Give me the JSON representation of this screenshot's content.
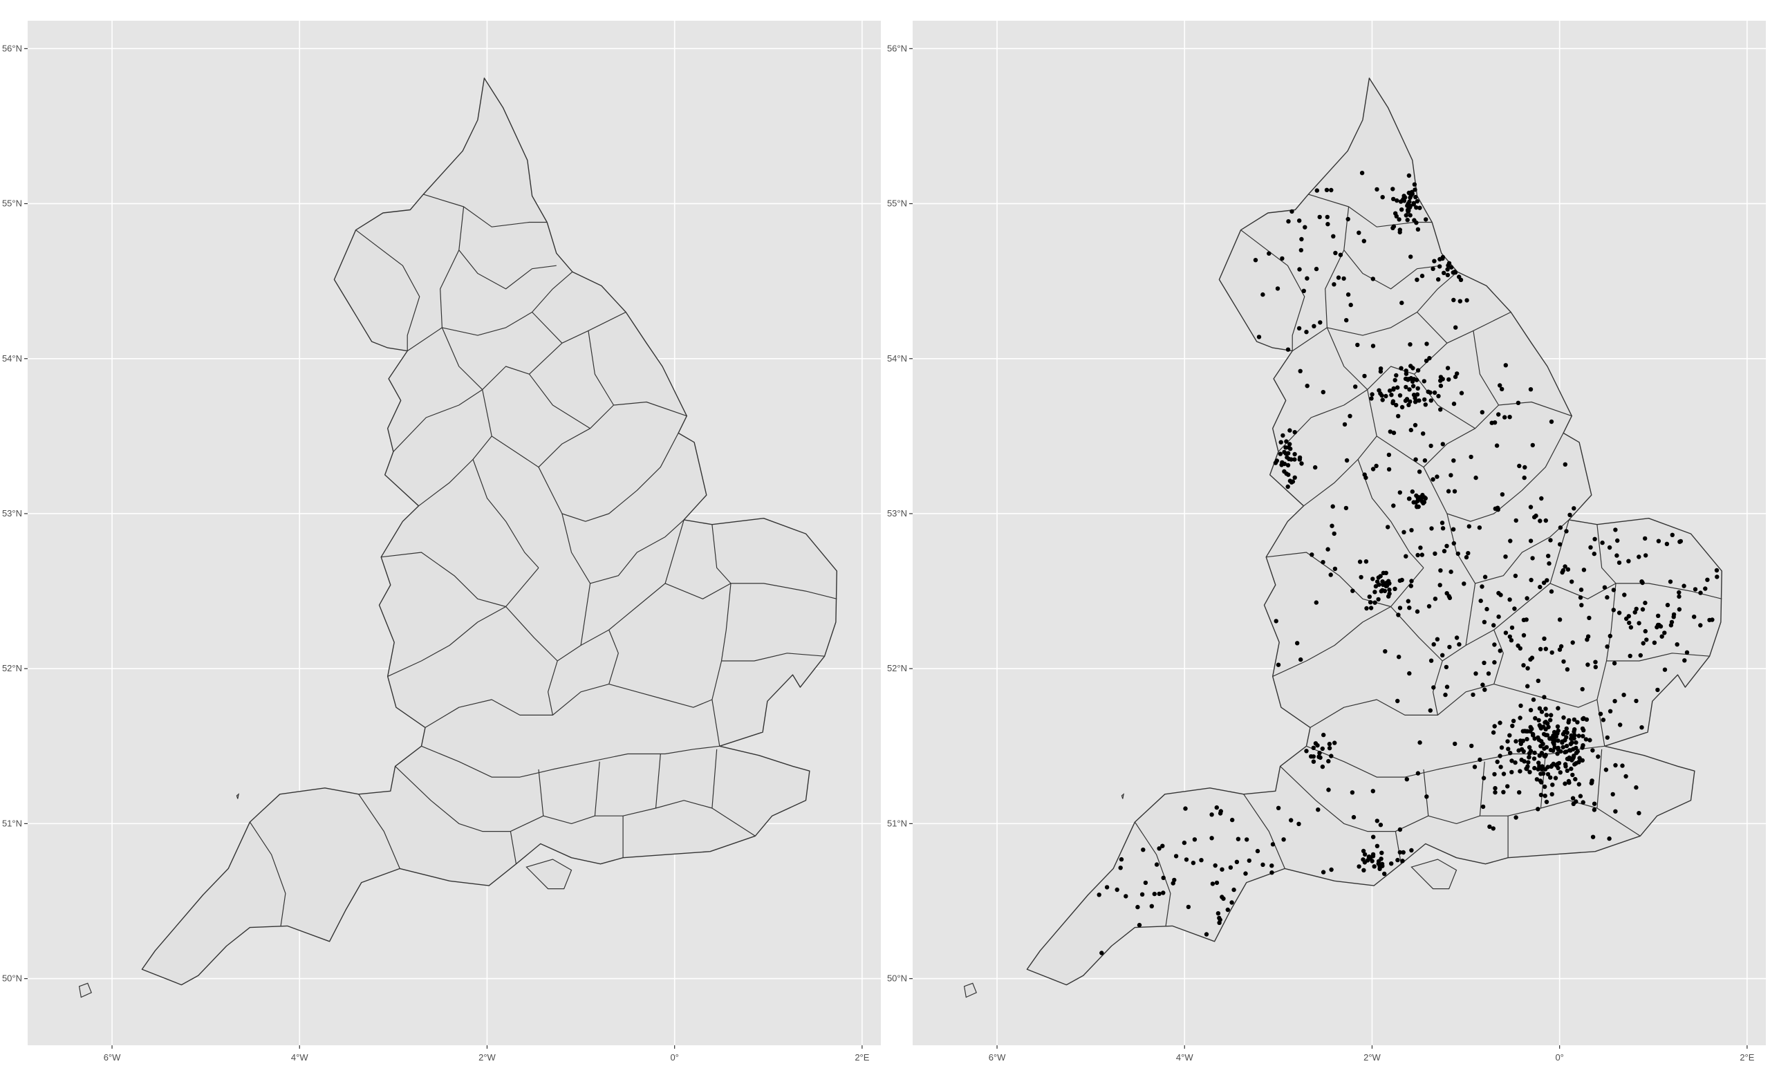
{
  "figure": {
    "panels": [
      {
        "id": "left",
        "description_visible": false,
        "show_points": false
      },
      {
        "id": "right",
        "description_visible": false,
        "show_points": true
      }
    ],
    "panel_bg": "#e5e5e5",
    "grid_color": "#ffffff",
    "land_fill": "#e1e1e1",
    "border_color": "#333333",
    "point_color": "#000000"
  },
  "chart_data": {
    "type": "map",
    "x_ticks": [
      "6°W",
      "4°W",
      "2°W",
      "0°",
      "2°E"
    ],
    "y_ticks": [
      "50°N",
      "51°N",
      "52°N",
      "53°N",
      "54°N",
      "55°N",
      "56°N"
    ],
    "xlim": [
      -6.9,
      2.2
    ],
    "ylim": [
      49.57,
      56.18
    ],
    "x_tick_values": [
      -6,
      -4,
      -2,
      0,
      2
    ],
    "y_tick_values": [
      50,
      51,
      52,
      53,
      54,
      55,
      56
    ],
    "outline": [
      [
        -2.03,
        55.81
      ],
      [
        -1.83,
        55.62
      ],
      [
        -1.57,
        55.28
      ],
      [
        -1.52,
        55.05
      ],
      [
        -1.36,
        54.88
      ],
      [
        -1.26,
        54.68
      ],
      [
        -1.09,
        54.56
      ],
      [
        -0.78,
        54.47
      ],
      [
        -0.52,
        54.3
      ],
      [
        -0.3,
        54.1
      ],
      [
        -0.13,
        53.95
      ],
      [
        0.13,
        53.63
      ],
      [
        0.04,
        53.52
      ],
      [
        0.21,
        53.46
      ],
      [
        0.34,
        53.12
      ],
      [
        0.1,
        52.96
      ],
      [
        0.4,
        52.93
      ],
      [
        0.95,
        52.97
      ],
      [
        1.4,
        52.87
      ],
      [
        1.73,
        52.63
      ],
      [
        1.72,
        52.3
      ],
      [
        1.6,
        52.08
      ],
      [
        1.34,
        51.88
      ],
      [
        1.26,
        51.96
      ],
      [
        0.99,
        51.79
      ],
      [
        0.94,
        51.59
      ],
      [
        0.48,
        51.5
      ],
      [
        0.9,
        51.44
      ],
      [
        1.26,
        51.37
      ],
      [
        1.44,
        51.34
      ],
      [
        1.4,
        51.15
      ],
      [
        1.04,
        51.05
      ],
      [
        0.86,
        50.92
      ],
      [
        0.38,
        50.82
      ],
      [
        -0.09,
        50.8
      ],
      [
        -0.55,
        50.78
      ],
      [
        -0.79,
        50.74
      ],
      [
        -1.1,
        50.78
      ],
      [
        -1.43,
        50.87
      ],
      [
        -1.69,
        50.74
      ],
      [
        -1.98,
        50.6
      ],
      [
        -2.4,
        50.63
      ],
      [
        -2.93,
        50.71
      ],
      [
        -3.34,
        50.62
      ],
      [
        -3.51,
        50.44
      ],
      [
        -3.68,
        50.24
      ],
      [
        -4.13,
        50.34
      ],
      [
        -4.53,
        50.33
      ],
      [
        -4.78,
        50.21
      ],
      [
        -5.08,
        50.02
      ],
      [
        -5.26,
        49.96
      ],
      [
        -5.68,
        50.06
      ],
      [
        -5.54,
        50.18
      ],
      [
        -5.03,
        50.54
      ],
      [
        -4.76,
        50.71
      ],
      [
        -4.53,
        51.01
      ],
      [
        -4.21,
        51.19
      ],
      [
        -3.73,
        51.23
      ],
      [
        -3.37,
        51.19
      ],
      [
        -3.03,
        51.21
      ],
      [
        -2.98,
        51.37
      ],
      [
        -2.7,
        51.5
      ],
      [
        -2.66,
        51.62
      ],
      [
        -2.97,
        51.75
      ],
      [
        -3.06,
        51.95
      ],
      [
        -2.99,
        52.17
      ],
      [
        -3.15,
        52.41
      ],
      [
        -3.03,
        52.54
      ],
      [
        -3.13,
        52.72
      ],
      [
        -2.9,
        52.95
      ],
      [
        -2.73,
        53.05
      ],
      [
        -3.09,
        53.25
      ],
      [
        -3.0,
        53.4
      ],
      [
        -3.06,
        53.55
      ],
      [
        -2.92,
        53.73
      ],
      [
        -3.05,
        53.87
      ],
      [
        -2.85,
        54.05
      ],
      [
        -3.06,
        54.07
      ],
      [
        -3.23,
        54.11
      ],
      [
        -3.39,
        54.27
      ],
      [
        -3.63,
        54.51
      ],
      [
        -3.4,
        54.83
      ],
      [
        -3.11,
        54.94
      ],
      [
        -2.82,
        54.96
      ],
      [
        -2.68,
        55.06
      ],
      [
        -2.26,
        55.34
      ],
      [
        -2.1,
        55.54
      ],
      [
        -2.03,
        55.81
      ]
    ],
    "boundaries": [
      [
        [
          -2.68,
          55.06
        ],
        [
          -2.25,
          54.98
        ],
        [
          -1.95,
          54.85
        ],
        [
          -1.55,
          54.88
        ],
        [
          -1.36,
          54.88
        ]
      ],
      [
        [
          -2.25,
          54.98
        ],
        [
          -2.3,
          54.7
        ],
        [
          -2.1,
          54.55
        ],
        [
          -1.8,
          54.45
        ],
        [
          -1.52,
          54.58
        ],
        [
          -1.26,
          54.6
        ]
      ],
      [
        [
          -3.4,
          54.83
        ],
        [
          -2.9,
          54.6
        ],
        [
          -2.72,
          54.4
        ],
        [
          -2.85,
          54.15
        ],
        [
          -2.85,
          54.05
        ]
      ],
      [
        [
          -2.3,
          54.7
        ],
        [
          -2.5,
          54.45
        ],
        [
          -2.48,
          54.2
        ],
        [
          -2.85,
          54.05
        ]
      ],
      [
        [
          -2.48,
          54.2
        ],
        [
          -2.1,
          54.15
        ],
        [
          -1.8,
          54.2
        ],
        [
          -1.52,
          54.3
        ],
        [
          -1.3,
          54.45
        ],
        [
          -1.09,
          54.56
        ]
      ],
      [
        [
          -1.52,
          54.3
        ],
        [
          -1.2,
          54.1
        ],
        [
          -0.92,
          54.18
        ],
        [
          -0.52,
          54.3
        ]
      ],
      [
        [
          -2.48,
          54.2
        ],
        [
          -2.3,
          53.95
        ],
        [
          -2.05,
          53.8
        ],
        [
          -1.8,
          53.95
        ],
        [
          -1.55,
          53.9
        ],
        [
          -1.2,
          54.1
        ]
      ],
      [
        [
          -3.0,
          53.4
        ],
        [
          -2.65,
          53.62
        ],
        [
          -2.3,
          53.7
        ],
        [
          -2.05,
          53.8
        ]
      ],
      [
        [
          -2.05,
          53.8
        ],
        [
          -1.95,
          53.5
        ],
        [
          -1.7,
          53.4
        ],
        [
          -1.45,
          53.3
        ],
        [
          -1.2,
          53.45
        ],
        [
          -0.9,
          53.55
        ],
        [
          -0.65,
          53.7
        ],
        [
          -0.3,
          53.72
        ],
        [
          0.13,
          53.63
        ]
      ],
      [
        [
          -0.92,
          54.18
        ],
        [
          -0.85,
          53.9
        ],
        [
          -0.65,
          53.7
        ]
      ],
      [
        [
          -1.55,
          53.9
        ],
        [
          -1.3,
          53.7
        ],
        [
          -0.9,
          53.55
        ]
      ],
      [
        [
          -2.73,
          53.05
        ],
        [
          -2.4,
          53.2
        ],
        [
          -2.15,
          53.35
        ],
        [
          -1.95,
          53.5
        ]
      ],
      [
        [
          -2.15,
          53.35
        ],
        [
          -2.0,
          53.1
        ],
        [
          -1.8,
          52.95
        ],
        [
          -1.6,
          52.75
        ],
        [
          -1.45,
          52.65
        ]
      ],
      [
        [
          -1.45,
          53.3
        ],
        [
          -1.2,
          53.0
        ],
        [
          -0.95,
          52.95
        ],
        [
          -0.7,
          53.0
        ],
        [
          -0.4,
          53.15
        ],
        [
          -0.15,
          53.3
        ],
        [
          0.04,
          53.52
        ]
      ],
      [
        [
          -1.2,
          53.0
        ],
        [
          -1.1,
          52.75
        ],
        [
          -0.9,
          52.55
        ],
        [
          -0.6,
          52.6
        ],
        [
          -0.4,
          52.75
        ],
        [
          -0.1,
          52.85
        ],
        [
          0.1,
          52.96
        ]
      ],
      [
        [
          -3.13,
          52.72
        ],
        [
          -2.7,
          52.75
        ],
        [
          -2.35,
          52.6
        ],
        [
          -2.1,
          52.45
        ],
        [
          -1.8,
          52.4
        ],
        [
          -1.45,
          52.65
        ]
      ],
      [
        [
          -3.06,
          51.95
        ],
        [
          -2.7,
          52.05
        ],
        [
          -2.4,
          52.15
        ],
        [
          -2.1,
          52.3
        ],
        [
          -1.8,
          52.4
        ]
      ],
      [
        [
          -1.8,
          52.4
        ],
        [
          -1.5,
          52.2
        ],
        [
          -1.25,
          52.05
        ],
        [
          -1.0,
          52.15
        ],
        [
          -0.9,
          52.55
        ]
      ],
      [
        [
          -1.0,
          52.15
        ],
        [
          -0.7,
          52.25
        ],
        [
          -0.4,
          52.4
        ],
        [
          -0.1,
          52.55
        ],
        [
          0.1,
          52.96
        ]
      ],
      [
        [
          -0.1,
          52.55
        ],
        [
          0.3,
          52.45
        ],
        [
          0.6,
          52.55
        ],
        [
          0.95,
          52.55
        ],
        [
          1.4,
          52.5
        ],
        [
          1.73,
          52.45
        ]
      ],
      [
        [
          0.4,
          52.93
        ],
        [
          0.45,
          52.65
        ],
        [
          0.6,
          52.55
        ]
      ],
      [
        [
          0.6,
          52.55
        ],
        [
          0.55,
          52.25
        ],
        [
          0.5,
          52.05
        ],
        [
          0.4,
          51.8
        ],
        [
          0.48,
          51.5
        ]
      ],
      [
        [
          0.5,
          52.05
        ],
        [
          0.85,
          52.05
        ],
        [
          1.2,
          52.1
        ],
        [
          1.6,
          52.08
        ]
      ],
      [
        [
          -2.66,
          51.62
        ],
        [
          -2.3,
          51.75
        ],
        [
          -1.95,
          51.8
        ],
        [
          -1.65,
          51.7
        ],
        [
          -1.3,
          51.7
        ],
        [
          -1.0,
          51.85
        ],
        [
          -0.7,
          51.9
        ],
        [
          -0.4,
          51.85
        ],
        [
          -0.1,
          51.8
        ],
        [
          0.2,
          51.75
        ],
        [
          0.4,
          51.8
        ]
      ],
      [
        [
          -1.25,
          52.05
        ],
        [
          -1.35,
          51.85
        ],
        [
          -1.3,
          51.7
        ]
      ],
      [
        [
          -0.7,
          51.9
        ],
        [
          -0.6,
          52.1
        ],
        [
          -0.7,
          52.25
        ]
      ],
      [
        [
          -2.7,
          51.5
        ],
        [
          -2.3,
          51.4
        ],
        [
          -1.95,
          51.3
        ],
        [
          -1.65,
          51.3
        ],
        [
          -1.3,
          51.35
        ],
        [
          -0.9,
          51.4
        ],
        [
          -0.5,
          51.45
        ],
        [
          -0.1,
          51.45
        ],
        [
          0.2,
          51.48
        ],
        [
          0.48,
          51.5
        ]
      ],
      [
        [
          -2.98,
          51.37
        ],
        [
          -2.6,
          51.15
        ],
        [
          -2.3,
          51.0
        ],
        [
          -2.05,
          50.95
        ],
        [
          -1.75,
          50.95
        ],
        [
          -1.69,
          50.74
        ]
      ],
      [
        [
          -3.37,
          51.19
        ],
        [
          -3.1,
          50.95
        ],
        [
          -2.93,
          50.71
        ]
      ],
      [
        [
          -4.53,
          51.01
        ],
        [
          -4.3,
          50.8
        ],
        [
          -4.15,
          50.55
        ],
        [
          -4.2,
          50.34
        ]
      ],
      [
        [
          -1.75,
          50.95
        ],
        [
          -1.4,
          51.05
        ],
        [
          -1.1,
          51.0
        ],
        [
          -0.85,
          51.05
        ],
        [
          -0.55,
          51.05
        ],
        [
          -0.2,
          51.1
        ],
        [
          0.1,
          51.15
        ],
        [
          0.4,
          51.1
        ],
        [
          0.86,
          50.92
        ]
      ],
      [
        [
          -1.4,
          51.05
        ],
        [
          -1.45,
          51.35
        ]
      ],
      [
        [
          -0.85,
          51.05
        ],
        [
          -0.8,
          51.4
        ]
      ],
      [
        [
          -0.2,
          51.1
        ],
        [
          -0.15,
          51.45
        ]
      ],
      [
        [
          0.4,
          51.1
        ],
        [
          0.45,
          51.48
        ]
      ],
      [
        [
          -0.55,
          51.05
        ],
        [
          -0.55,
          50.78
        ]
      ]
    ],
    "islands": [
      [
        [
          -1.58,
          50.72
        ],
        [
          -1.3,
          50.77
        ],
        [
          -1.1,
          50.7
        ],
        [
          -1.18,
          50.58
        ],
        [
          -1.35,
          50.58
        ],
        [
          -1.58,
          50.72
        ]
      ],
      [
        [
          -6.35,
          49.95
        ],
        [
          -6.26,
          49.97
        ],
        [
          -6.22,
          49.91
        ],
        [
          -6.33,
          49.88
        ],
        [
          -6.35,
          49.95
        ]
      ],
      [
        [
          -4.67,
          51.18
        ],
        [
          -4.65,
          51.19
        ],
        [
          -4.66,
          51.16
        ],
        [
          -4.67,
          51.18
        ]
      ]
    ],
    "point_clusters": [
      {
        "center": [
          -0.12,
          51.5
        ],
        "spread": [
          0.25,
          0.12
        ],
        "n": 160
      },
      {
        "center": [
          -1.6,
          55.0
        ],
        "spread": [
          0.1,
          0.08
        ],
        "n": 45
      },
      {
        "center": [
          -1.6,
          53.8
        ],
        "spread": [
          0.2,
          0.08
        ],
        "n": 60
      },
      {
        "center": [
          -2.9,
          53.35
        ],
        "spread": [
          0.08,
          0.08
        ],
        "n": 35
      },
      {
        "center": [
          -1.9,
          52.5
        ],
        "spread": [
          0.08,
          0.06
        ],
        "n": 30
      },
      {
        "center": [
          -1.5,
          53.1
        ],
        "spread": [
          0.05,
          0.05
        ],
        "n": 20
      },
      {
        "center": [
          -1.9,
          50.75
        ],
        "spread": [
          0.2,
          0.05
        ],
        "n": 30
      },
      {
        "center": [
          -1.2,
          54.57
        ],
        "spread": [
          0.1,
          0.04
        ],
        "n": 18
      },
      {
        "center": [
          -2.55,
          51.45
        ],
        "spread": [
          0.1,
          0.05
        ],
        "n": 18
      },
      {
        "center": [
          0.2,
          51.35
        ],
        "spread": [
          0.4,
          0.15
        ],
        "n": 60
      },
      {
        "center": [
          -0.5,
          52.0
        ],
        "spread": [
          1.2,
          0.6
        ],
        "n": 160
      },
      {
        "center": [
          -1.5,
          53.3
        ],
        "spread": [
          0.9,
          0.6
        ],
        "n": 120
      },
      {
        "center": [
          1.0,
          52.4
        ],
        "spread": [
          0.6,
          0.4
        ],
        "n": 80
      },
      {
        "center": [
          -3.8,
          50.6
        ],
        "spread": [
          0.8,
          0.3
        ],
        "n": 70
      },
      {
        "center": [
          -2.5,
          54.7
        ],
        "spread": [
          0.8,
          0.4
        ],
        "n": 50
      }
    ]
  }
}
